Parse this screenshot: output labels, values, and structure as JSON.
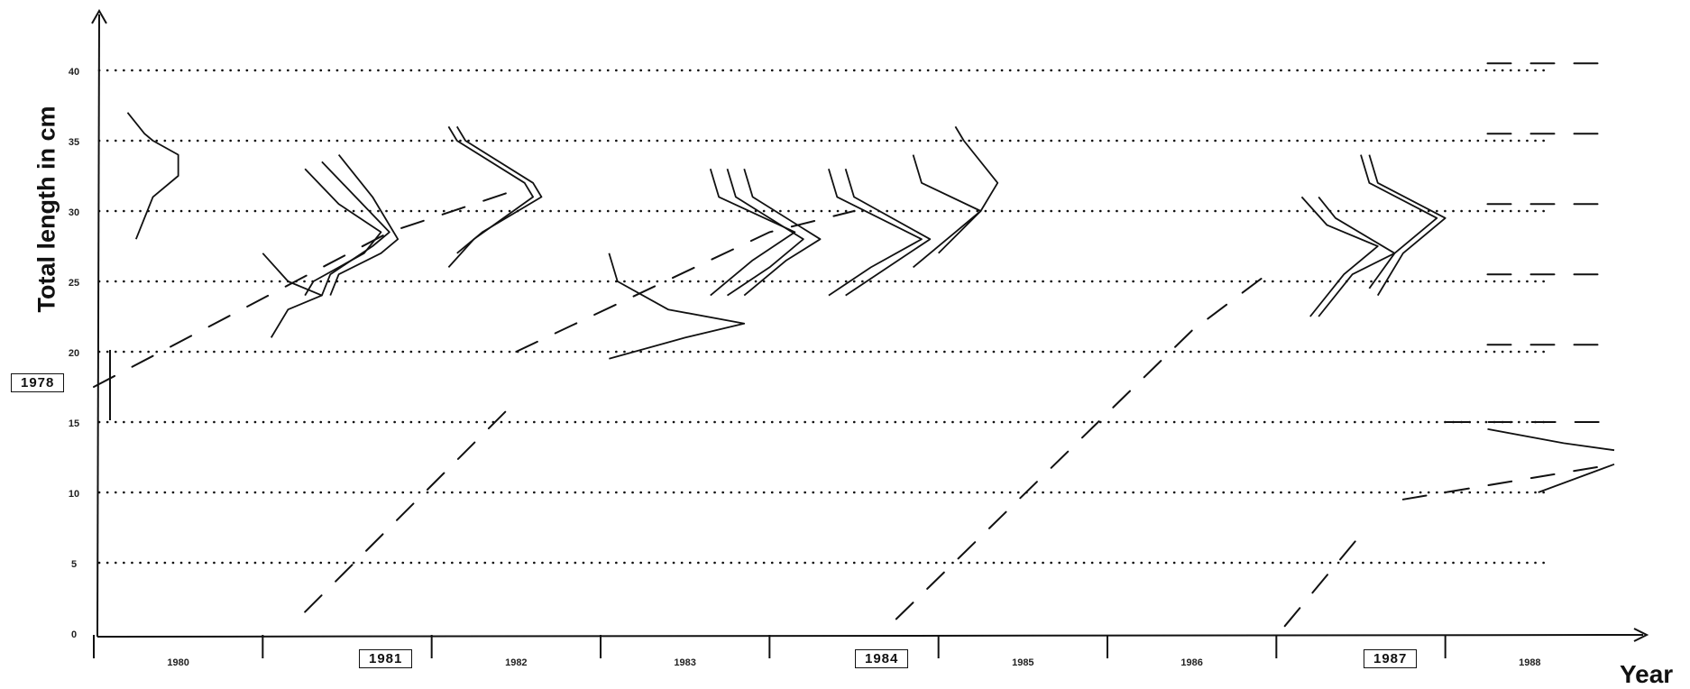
{
  "chart_data": {
    "type": "line",
    "xlabel": "Year",
    "ylabel": "Total length in cm",
    "y_ticks": [
      "0",
      "5",
      "10",
      "15",
      "20",
      "25",
      "30",
      "35",
      "40"
    ],
    "ylim": [
      0,
      42
    ],
    "x_tick_labels": [
      "1980",
      "1981",
      "1982",
      "1983",
      "1984",
      "1985",
      "1986",
      "1987",
      "1988"
    ],
    "boxed_years": [
      "1978",
      "1981",
      "1984",
      "1987"
    ],
    "xlim": [
      1979.75,
      1988.75
    ],
    "grid": "dotted horizontal",
    "series": [
      {
        "x": [
          1979.75,
          1981.5,
          1982.25
        ],
        "y": [
          17.5,
          28.5,
          31.5
        ]
      },
      {
        "x": [
          1981.0,
          1982.25
        ],
        "y": [
          1.5,
          16.5
        ]
      },
      {
        "x": [
          1982.25,
          1983.75,
          1984.25
        ],
        "y": [
          20.0,
          28.5,
          30.0
        ]
      },
      {
        "x": [
          1984.5,
          1986.25,
          1986.75
        ],
        "y": [
          1.0,
          21.5,
          26.0
        ]
      },
      {
        "x": [
          1986.8,
          1987.25
        ],
        "y": [
          0.5,
          7.0
        ]
      },
      {
        "x": [
          1987.5,
          1988.75
        ],
        "y": [
          9.5,
          12.0
        ]
      },
      {
        "x": [
          1987.75,
          1988.75
        ],
        "y": [
          15.0,
          15.0
        ]
      },
      {
        "x": [
          1988.0,
          1988.75
        ],
        "y": [
          20.5,
          20.5
        ]
      },
      {
        "x": [
          1988.0,
          1988.75
        ],
        "y": [
          25.5,
          25.5
        ]
      },
      {
        "x": [
          1988.0,
          1988.75
        ],
        "y": [
          30.5,
          30.5
        ]
      },
      {
        "x": [
          1988.0,
          1988.75
        ],
        "y": [
          35.5,
          35.5
        ]
      },
      {
        "x": [
          1988.0,
          1988.75
        ],
        "y": [
          40.5,
          40.5
        ]
      }
    ],
    "frequency_curves": [
      {
        "x": [
          1979.95,
          1980.05,
          1980.1,
          1980.25,
          1980.25,
          1980.1,
          1980.0
        ],
        "y": [
          37.0,
          35.5,
          35.0,
          34.0,
          32.5,
          31.0,
          28.0
        ]
      },
      {
        "x": [
          1981.0,
          1981.2,
          1981.45,
          1981.35,
          1981.05,
          1981.0
        ],
        "y": [
          33.0,
          30.5,
          28.5,
          27.0,
          25.0,
          24.0
        ]
      },
      {
        "x": [
          1981.1,
          1981.3,
          1981.5,
          1981.4,
          1981.15,
          1981.1
        ],
        "y": [
          33.5,
          31.0,
          28.5,
          27.5,
          25.5,
          24.0
        ]
      },
      {
        "x": [
          1981.2,
          1981.4,
          1981.55,
          1981.45,
          1981.2,
          1981.15
        ],
        "y": [
          34.0,
          31.0,
          28.0,
          27.0,
          25.5,
          24.0
        ]
      },
      {
        "x": [
          1980.75,
          1980.9,
          1981.1,
          1980.9,
          1980.8
        ],
        "y": [
          27.0,
          25.0,
          24.0,
          23.0,
          21.0
        ]
      },
      {
        "x": [
          1981.85,
          1981.9,
          1982.3,
          1982.35,
          1982.0,
          1981.85
        ],
        "y": [
          36.0,
          35.0,
          32.0,
          31.0,
          28.0,
          26.0
        ]
      },
      {
        "x": [
          1981.9,
          1981.95,
          1982.35,
          1982.4,
          1982.05,
          1981.9
        ],
        "y": [
          36.0,
          35.0,
          32.0,
          31.0,
          28.5,
          27.0
        ]
      },
      {
        "x": [
          1982.8,
          1982.85,
          1983.15,
          1983.6,
          1983.25,
          1982.8
        ],
        "y": [
          27.0,
          25.0,
          23.0,
          22.0,
          21.0,
          19.5
        ]
      },
      {
        "x": [
          1983.4,
          1983.45,
          1983.9,
          1983.65,
          1983.4
        ],
        "y": [
          33.0,
          31.0,
          28.5,
          26.5,
          24.0
        ]
      },
      {
        "x": [
          1983.5,
          1983.55,
          1983.95,
          1983.75,
          1983.5
        ],
        "y": [
          33.0,
          31.0,
          28.0,
          26.0,
          24.0
        ]
      },
      {
        "x": [
          1983.6,
          1983.65,
          1984.05,
          1983.85,
          1983.6
        ],
        "y": [
          33.0,
          31.0,
          28.0,
          26.5,
          24.0
        ]
      },
      {
        "x": [
          1984.1,
          1984.15,
          1984.65,
          1984.35,
          1984.1
        ],
        "y": [
          33.0,
          31.0,
          28.0,
          26.0,
          24.0
        ]
      },
      {
        "x": [
          1984.2,
          1984.25,
          1984.7,
          1984.45,
          1984.2
        ],
        "y": [
          33.0,
          31.0,
          28.0,
          26.0,
          24.0
        ]
      },
      {
        "x": [
          1984.6,
          1984.65,
          1985.0,
          1984.85,
          1984.6
        ],
        "y": [
          34.0,
          32.0,
          30.0,
          28.5,
          26.0
        ]
      },
      {
        "x": [
          1984.85,
          1984.9,
          1985.1,
          1985.0,
          1984.75
        ],
        "y": [
          36.0,
          35.0,
          32.0,
          30.0,
          27.0
        ]
      },
      {
        "x": [
          1986.9,
          1987.05,
          1987.35,
          1987.15,
          1986.95
        ],
        "y": [
          31.0,
          29.0,
          27.5,
          25.5,
          22.5
        ]
      },
      {
        "x": [
          1987.0,
          1987.1,
          1987.45,
          1987.2,
          1987.0
        ],
        "y": [
          31.0,
          29.5,
          27.0,
          25.5,
          22.5
        ]
      },
      {
        "x": [
          1987.25,
          1987.3,
          1987.7,
          1987.45,
          1987.3
        ],
        "y": [
          34.0,
          32.0,
          29.5,
          27.0,
          24.5
        ]
      },
      {
        "x": [
          1987.3,
          1987.35,
          1987.75,
          1987.5,
          1987.35
        ],
        "y": [
          34.0,
          32.0,
          29.5,
          27.0,
          24.0
        ]
      },
      {
        "x": [
          1988.0,
          1988.45,
          1988.75
        ],
        "y": [
          14.5,
          13.5,
          13.0
        ]
      },
      {
        "x": [
          1988.3,
          1988.75
        ],
        "y": [
          10.0,
          12.0
        ]
      }
    ]
  }
}
